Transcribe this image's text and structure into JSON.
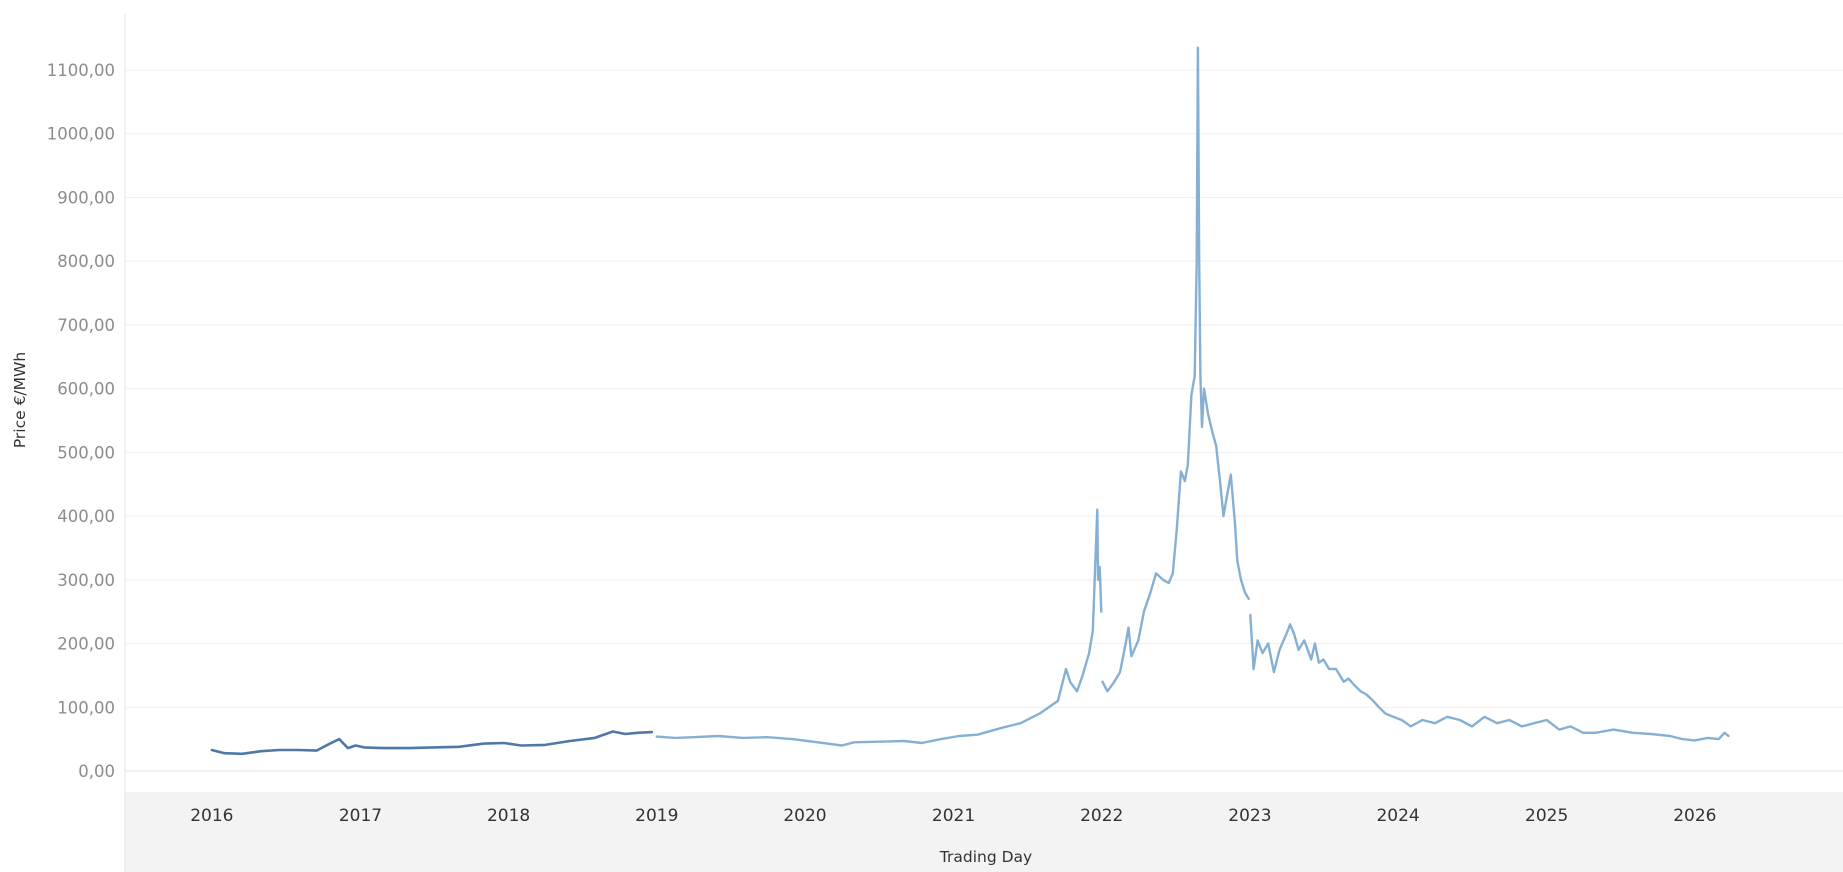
{
  "chart_data": {
    "type": "line",
    "title": "",
    "xlabel": "Trading Day",
    "ylabel": "Price €/MWh",
    "ylim": [
      0,
      1100
    ],
    "yticks": [
      0,
      100,
      200,
      300,
      400,
      500,
      600,
      700,
      800,
      900,
      1000,
      1100
    ],
    "ytick_labels": [
      "0,00",
      "100,00",
      "200,00",
      "300,00",
      "400,00",
      "500,00",
      "600,00",
      "700,00",
      "800,00",
      "900,00",
      "1000,00",
      "1100,00"
    ],
    "xlim": [
      "2015-06-01",
      "2027-01-01"
    ],
    "xticks": [
      "2016",
      "2017",
      "2018",
      "2019",
      "2020",
      "2021",
      "2022",
      "2023",
      "2024",
      "2025",
      "2026"
    ],
    "grid": "horizontal",
    "colors": {
      "early_line": "#4e79a7",
      "late_line": "#86b0d3",
      "axis_band": "#f3f3f3",
      "gridline": "#efefef"
    },
    "series": [
      {
        "color": "#4e79a7",
        "x": [
          "2016-01-01",
          "2016-02-01",
          "2016-03-15",
          "2016-05-01",
          "2016-06-15",
          "2016-08-01",
          "2016-09-15",
          "2016-10-15",
          "2016-11-10",
          "2016-12-01",
          "2016-12-20",
          "2017-01-10",
          "2017-03-01",
          "2017-05-01",
          "2017-07-01",
          "2017-09-01",
          "2017-11-01",
          "2017-12-20",
          "2018-02-01",
          "2018-04-01",
          "2018-06-01",
          "2018-08-01",
          "2018-09-15",
          "2018-10-15",
          "2018-11-15",
          "2018-12-20"
        ],
        "y": [
          33,
          28,
          27,
          31,
          33,
          33,
          32,
          42,
          50,
          36,
          40,
          37,
          36,
          36,
          37,
          38,
          43,
          44,
          40,
          41,
          47,
          52,
          62,
          58,
          60,
          61
        ]
      },
      {
        "color": "#86b0d3",
        "x": [
          "2019-01-01",
          "2019-02-15",
          "2019-04-01",
          "2019-06-01",
          "2019-08-01",
          "2019-10-01",
          "2019-12-01",
          "2020-02-01",
          "2020-04-01",
          "2020-05-01",
          "2020-07-01",
          "2020-09-01",
          "2020-10-15",
          "2020-12-01",
          "2021-01-15",
          "2021-03-01",
          "2021-05-01",
          "2021-06-15",
          "2021-08-01",
          "2021-09-15",
          "2021-10-05",
          "2021-10-15",
          "2021-11-01",
          "2021-11-15",
          "2021-12-01",
          "2021-12-10",
          "2021-12-21",
          "2021-12-23",
          "2021-12-27",
          "2021-12-31"
        ],
        "y": [
          54,
          52,
          53,
          55,
          52,
          53,
          50,
          45,
          40,
          45,
          46,
          47,
          44,
          50,
          55,
          57,
          68,
          75,
          90,
          110,
          160,
          140,
          125,
          150,
          185,
          220,
          410,
          300,
          320,
          250
        ]
      },
      {
        "color": "#86b0d3",
        "x": [
          "2022-01-03",
          "2022-01-15",
          "2022-02-01",
          "2022-02-15",
          "2022-03-01",
          "2022-03-08",
          "2022-03-15",
          "2022-04-01",
          "2022-04-15",
          "2022-05-01",
          "2022-05-15",
          "2022-06-01",
          "2022-06-15",
          "2022-06-25",
          "2022-07-05",
          "2022-07-15",
          "2022-07-25",
          "2022-08-01",
          "2022-08-10",
          "2022-08-18",
          "2022-08-23",
          "2022-08-26",
          "2022-08-29",
          "2022-09-01",
          "2022-09-05",
          "2022-09-10",
          "2022-09-20",
          "2022-10-01",
          "2022-10-10",
          "2022-10-20",
          "2022-10-28",
          "2022-11-05",
          "2022-11-15",
          "2022-11-25",
          "2022-12-01",
          "2022-12-10",
          "2022-12-20",
          "2022-12-29"
        ],
        "y": [
          140,
          125,
          140,
          155,
          200,
          225,
          180,
          205,
          250,
          280,
          310,
          300,
          295,
          310,
          380,
          470,
          455,
          480,
          590,
          620,
          800,
          1135,
          800,
          620,
          540,
          600,
          560,
          530,
          510,
          450,
          400,
          430,
          465,
          390,
          330,
          300,
          280,
          270
        ]
      },
      {
        "color": "#86b0d3",
        "x": [
          "2023-01-02",
          "2023-01-10",
          "2023-01-20",
          "2023-02-01",
          "2023-02-15",
          "2023-03-01",
          "2023-03-15",
          "2023-04-01",
          "2023-04-10",
          "2023-04-20",
          "2023-05-01",
          "2023-05-15",
          "2023-06-01",
          "2023-06-10",
          "2023-06-20",
          "2023-07-01",
          "2023-07-15",
          "2023-08-01",
          "2023-08-20",
          "2023-09-01",
          "2023-09-15",
          "2023-10-01",
          "2023-10-15",
          "2023-11-01",
          "2023-11-15",
          "2023-12-01",
          "2023-12-20",
          "2024-01-10",
          "2024-02-01",
          "2024-03-01",
          "2024-04-01",
          "2024-05-01",
          "2024-06-01",
          "2024-07-01",
          "2024-08-01",
          "2024-09-01",
          "2024-10-01",
          "2024-11-01",
          "2024-12-01",
          "2025-01-01",
          "2025-02-01",
          "2025-03-01",
          "2025-04-01",
          "2025-05-01",
          "2025-06-15",
          "2025-08-01",
          "2025-09-15",
          "2025-11-01",
          "2025-12-01",
          "2026-01-01",
          "2026-02-01",
          "2026-03-01",
          "2026-03-15",
          "2026-03-25"
        ],
        "y": [
          245,
          160,
          205,
          185,
          200,
          155,
          190,
          215,
          230,
          215,
          190,
          205,
          175,
          200,
          170,
          175,
          160,
          160,
          140,
          145,
          135,
          125,
          120,
          110,
          100,
          90,
          85,
          80,
          70,
          80,
          75,
          85,
          80,
          70,
          85,
          75,
          80,
          70,
          75,
          80,
          65,
          70,
          60,
          60,
          65,
          60,
          58,
          55,
          50,
          48,
          52,
          50,
          60,
          55
        ]
      }
    ]
  }
}
